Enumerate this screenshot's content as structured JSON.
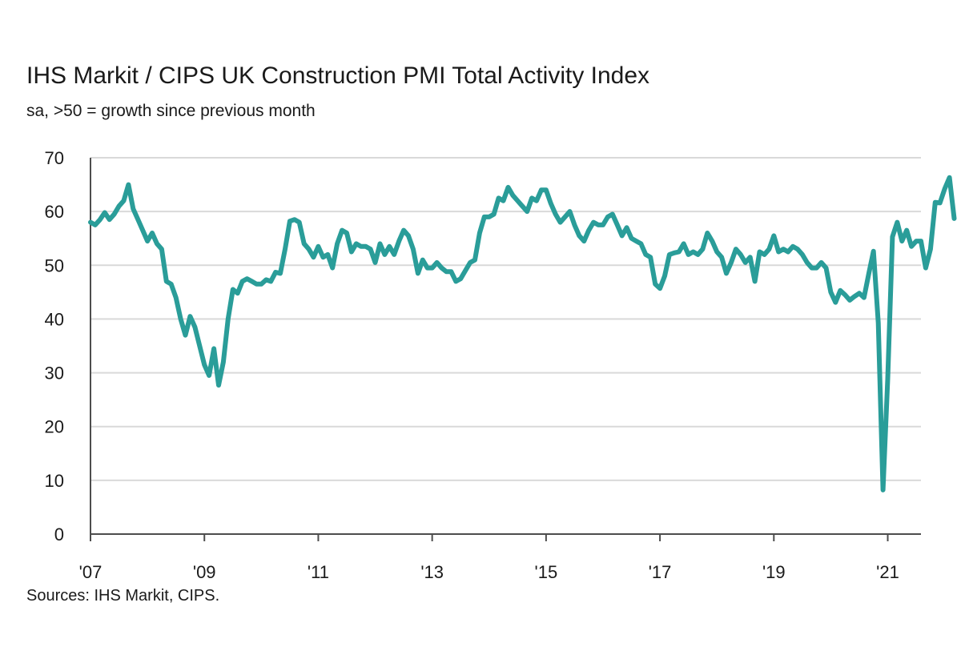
{
  "title": "IHS Markit / CIPS UK Construction PMI Total Activity Index",
  "subtitle": "sa, >50 = growth since previous month",
  "source": "Sources: IHS Markit, CIPS.",
  "colors": {
    "line": "#2a9d99",
    "grid": "#d9d9d9",
    "axis": "#4d4d4d"
  },
  "chart_data": {
    "type": "line",
    "title": "IHS Markit / CIPS UK Construction PMI Total Activity Index",
    "subtitle": "sa, >50 = growth since previous month",
    "xlabel": "",
    "ylabel": "",
    "ylim": [
      0,
      70
    ],
    "yticks": [
      0,
      10,
      20,
      30,
      40,
      50,
      60,
      70
    ],
    "xlim": [
      "2007-01",
      "2021-08"
    ],
    "xticks": [
      {
        "date": "2007-01",
        "label": "'07"
      },
      {
        "date": "2009-01",
        "label": "'09"
      },
      {
        "date": "2011-01",
        "label": "'11"
      },
      {
        "date": "2013-01",
        "label": "'13"
      },
      {
        "date": "2015-01",
        "label": "'15"
      },
      {
        "date": "2017-01",
        "label": "'17"
      },
      {
        "date": "2019-01",
        "label": "'19"
      },
      {
        "date": "2021-01",
        "label": "'21"
      }
    ],
    "grid": true,
    "legend": "none",
    "series": [
      {
        "start": "2007-01",
        "frequency": "monthly",
        "color": "#2a9d99",
        "values": [
          58.0,
          57.5,
          58.5,
          59.8,
          58.5,
          59.5,
          61.0,
          62.0,
          65.0,
          60.5,
          58.5,
          56.5,
          54.5,
          56.0,
          54.0,
          53.0,
          47.0,
          46.5,
          44.0,
          40.0,
          37.0,
          40.5,
          38.5,
          35.0,
          31.5,
          29.5,
          34.5,
          27.7,
          32.0,
          40.0,
          45.5,
          44.8,
          47.0,
          47.5,
          47.0,
          46.5,
          46.5,
          47.3,
          47.0,
          48.7,
          48.5,
          53.0,
          58.2,
          58.5,
          58.0,
          54.0,
          53.0,
          51.5,
          53.5,
          51.5,
          52.0,
          49.5,
          54.0,
          56.5,
          56.0,
          52.5,
          54.0,
          53.5,
          53.5,
          53.0,
          50.5,
          54.0,
          52.0,
          53.5,
          52.0,
          54.5,
          56.5,
          55.5,
          53.0,
          48.5,
          51.0,
          49.5,
          49.5,
          50.5,
          49.5,
          48.8,
          48.8,
          47.0,
          47.5,
          49.0,
          50.5,
          51.0,
          56.0,
          59.0,
          59.0,
          59.5,
          62.5,
          62.0,
          64.5,
          63.0,
          62.0,
          61.0,
          60.0,
          62.5,
          62.0,
          64.0,
          64.0,
          61.5,
          59.5,
          58.0,
          59.0,
          60.0,
          57.5,
          55.5,
          54.5,
          56.5,
          58.0,
          57.5,
          57.5,
          59.0,
          59.5,
          57.5,
          55.5,
          57.0,
          55.0,
          54.5,
          54.0,
          52.0,
          51.5,
          46.5,
          45.7,
          48.0,
          52.0,
          52.3,
          52.5,
          54.0,
          52.0,
          52.5,
          52.0,
          53.0,
          56.0,
          54.5,
          52.5,
          51.5,
          48.5,
          50.5,
          53.0,
          52.0,
          50.5,
          51.5,
          47.0,
          52.5,
          52.0,
          53.0,
          55.5,
          52.5,
          53.0,
          52.5,
          53.5,
          53.0,
          52.0,
          50.5,
          49.5,
          49.5,
          50.5,
          49.5,
          45.0,
          43.1,
          45.3,
          44.5,
          43.5,
          44.2,
          44.8,
          44.0,
          48.4,
          52.6,
          39.3,
          8.2,
          28.9,
          55.3,
          58.0,
          54.5,
          56.5,
          53.5,
          54.5,
          54.5,
          49.5,
          53.0,
          61.7,
          61.6,
          64.2,
          66.3,
          58.7
        ]
      }
    ]
  }
}
